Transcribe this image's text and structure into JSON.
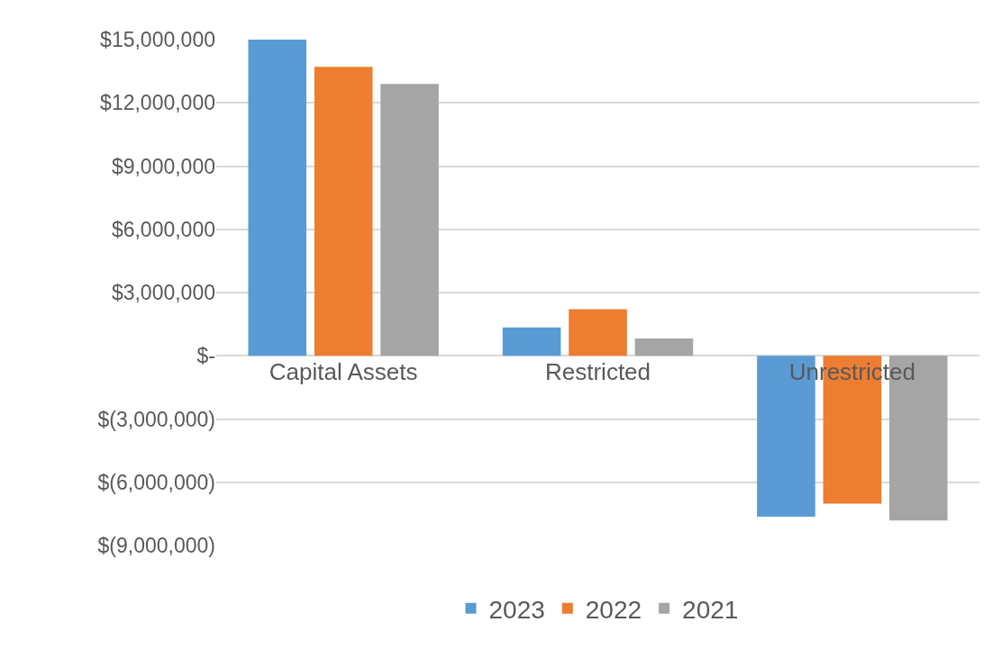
{
  "chart_data": {
    "type": "bar",
    "categories": [
      "Capital Assets",
      "Restricted",
      "Unrestricted"
    ],
    "series": [
      {
        "name": "2023",
        "color": "#5b9bd5",
        "values": [
          15000000,
          1340000,
          -7630000
        ]
      },
      {
        "name": "2022",
        "color": "#ed7d31",
        "values": [
          13710000,
          2210000,
          -7010000
        ]
      },
      {
        "name": "2021",
        "color": "#a5a5a5",
        "values": [
          12900000,
          820000,
          -7810000
        ]
      }
    ],
    "ylim": [
      -9000000,
      15000000
    ],
    "yticks": [
      {
        "value": 15000000,
        "label": "$15,000,000"
      },
      {
        "value": 12000000,
        "label": "$12,000,000"
      },
      {
        "value": 9000000,
        "label": "$9,000,000"
      },
      {
        "value": 6000000,
        "label": "$6,000,000"
      },
      {
        "value": 3000000,
        "label": "$3,000,000"
      },
      {
        "value": 0,
        "label": "$-"
      },
      {
        "value": -3000000,
        "label": "$(3,000,000)"
      },
      {
        "value": -6000000,
        "label": "$(6,000,000)"
      },
      {
        "value": -9000000,
        "label": "$(9,000,000)"
      }
    ],
    "grid": "y",
    "legend": "bottom"
  }
}
